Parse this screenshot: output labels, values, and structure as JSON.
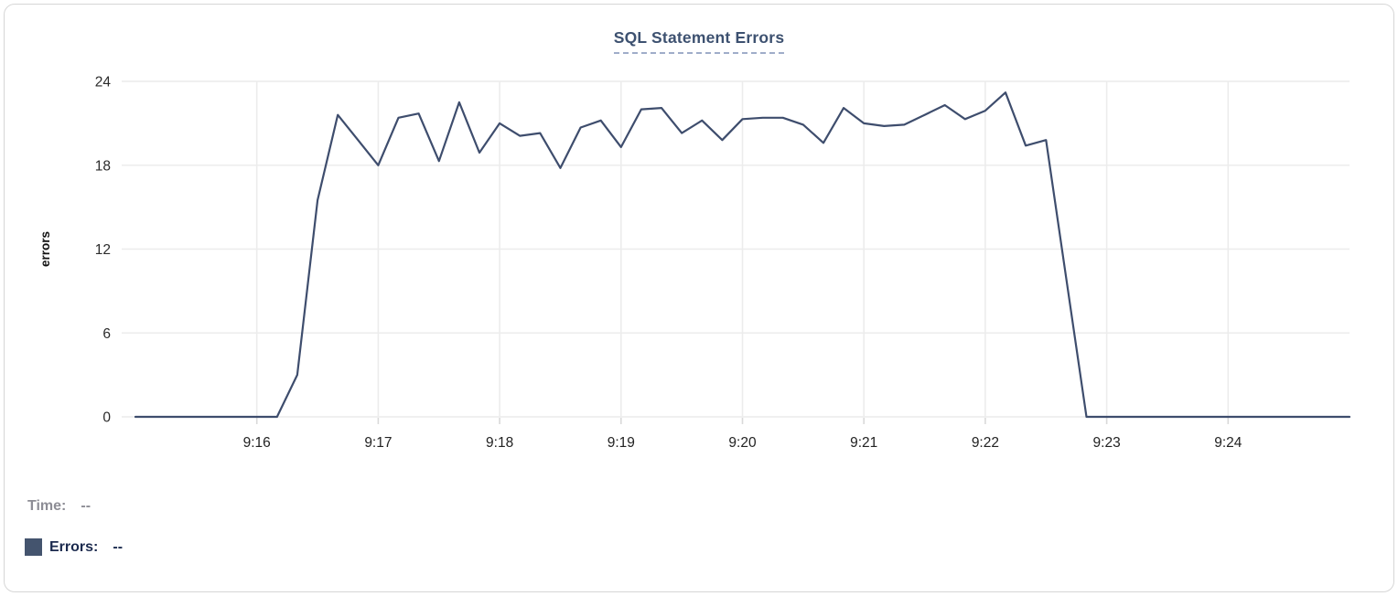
{
  "chart": {
    "title": "SQL Statement Errors",
    "ylabel": "errors"
  },
  "legend": {
    "time_label": "Time:",
    "time_value": "--",
    "errors_label": "Errors:",
    "errors_value": "--"
  },
  "colors": {
    "line": "#3e4d6d",
    "legend_swatch": "#44546e",
    "title_text": "#3d5170",
    "title_underline": "#9fadc9",
    "grid": "#ececec",
    "tick_mark": "#d9d9d9",
    "axis_text": "#2b2b2b",
    "time_label_text": "#8d8d95",
    "errors_label_text": "#1b2a4e"
  },
  "chart_data": {
    "type": "line",
    "title": "SQL Statement Errors",
    "xlabel": "",
    "ylabel": "errors",
    "ylim": [
      0,
      24
    ],
    "y_ticks": [
      0,
      6,
      12,
      18,
      24
    ],
    "x_tick_labels": [
      "9:16",
      "9:17",
      "9:18",
      "9:19",
      "9:20",
      "9:21",
      "9:22",
      "9:23",
      "9:24"
    ],
    "grid": true,
    "legend_position": "bottom-left",
    "start_time": "9:15:00",
    "end_time": "9:25:00",
    "interval_seconds": 10,
    "series": [
      {
        "name": "Errors",
        "color": "#3e4d6d",
        "values": [
          0,
          0,
          0,
          0,
          0,
          0,
          0,
          0,
          3,
          15.5,
          21.6,
          19.8,
          18,
          21.4,
          21.7,
          18.3,
          22.5,
          18.9,
          21,
          20.1,
          20.3,
          17.8,
          20.7,
          21.2,
          19.3,
          22,
          22.1,
          20.3,
          21.2,
          19.8,
          21.3,
          21.4,
          21.4,
          20.9,
          19.6,
          22.1,
          21,
          20.8,
          20.9,
          21.6,
          22.3,
          21.3,
          21.9,
          23.2,
          19.4,
          19.8,
          9.9,
          0,
          0,
          0,
          0,
          0,
          0,
          0,
          0,
          0,
          0,
          0,
          0,
          0,
          0
        ]
      }
    ],
    "hover_readout": {
      "time": "--",
      "errors": "--"
    }
  }
}
